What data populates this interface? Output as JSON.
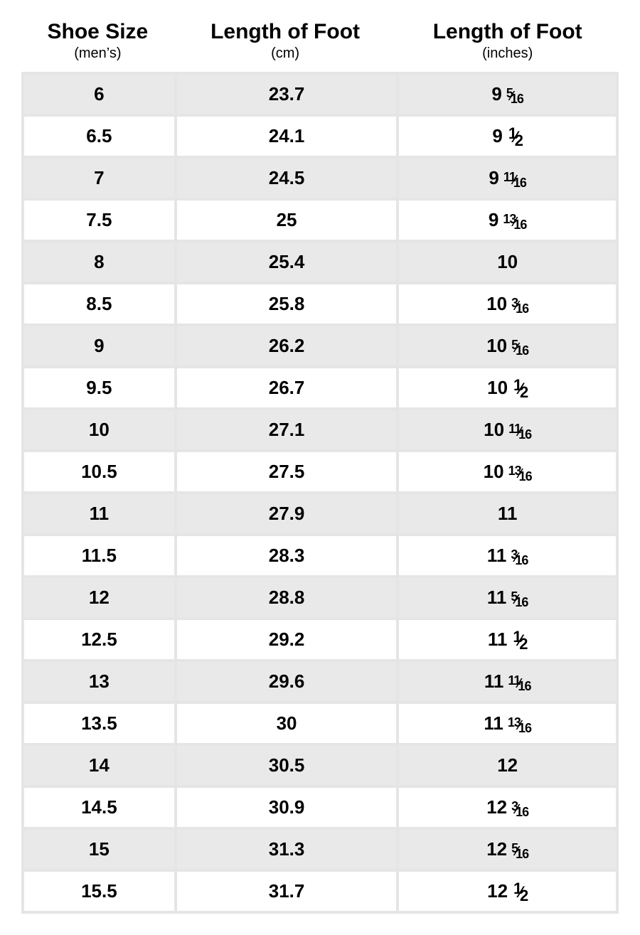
{
  "table": {
    "type": "table",
    "background_color": "#ffffff",
    "row_colors": {
      "odd": "#e9e9e9",
      "even": "#ffffff"
    },
    "border_color": "#e5e5e5",
    "header_fontsize_main": 30,
    "header_fontsize_sub": 20,
    "cell_fontsize": 26,
    "cell_fontweight": 700,
    "fraction_small_fontsize": 18,
    "columns": [
      {
        "title": "Shoe Size",
        "subtitle": "(men’s)"
      },
      {
        "title": "Length of Foot",
        "subtitle": "(cm)"
      },
      {
        "title": "Length of Foot",
        "subtitle": "(inches)"
      }
    ],
    "rows": [
      {
        "size": "6",
        "cm": "23.7",
        "in_whole": "9",
        "in_num": "5",
        "in_den": "16"
      },
      {
        "size": "6.5",
        "cm": "24.1",
        "in_whole": "9",
        "in_num": "1",
        "in_den": "2"
      },
      {
        "size": "7",
        "cm": "24.5",
        "in_whole": "9",
        "in_num": "11",
        "in_den": "16"
      },
      {
        "size": "7.5",
        "cm": "25",
        "in_whole": "9",
        "in_num": "13",
        "in_den": "16"
      },
      {
        "size": "8",
        "cm": "25.4",
        "in_whole": "10",
        "in_num": "",
        "in_den": ""
      },
      {
        "size": "8.5",
        "cm": "25.8",
        "in_whole": "10",
        "in_num": "3",
        "in_den": "16"
      },
      {
        "size": "9",
        "cm": "26.2",
        "in_whole": "10",
        "in_num": "5",
        "in_den": "16"
      },
      {
        "size": "9.5",
        "cm": "26.7",
        "in_whole": "10",
        "in_num": "1",
        "in_den": "2"
      },
      {
        "size": "10",
        "cm": "27.1",
        "in_whole": "10",
        "in_num": "11",
        "in_den": "16"
      },
      {
        "size": "10.5",
        "cm": "27.5",
        "in_whole": "10",
        "in_num": "13",
        "in_den": "16"
      },
      {
        "size": "11",
        "cm": "27.9",
        "in_whole": "11",
        "in_num": "",
        "in_den": ""
      },
      {
        "size": "11.5",
        "cm": "28.3",
        "in_whole": "11",
        "in_num": "3",
        "in_den": "16"
      },
      {
        "size": "12",
        "cm": "28.8",
        "in_whole": "11",
        "in_num": "5",
        "in_den": "16"
      },
      {
        "size": "12.5",
        "cm": "29.2",
        "in_whole": "11",
        "in_num": "1",
        "in_den": "2"
      },
      {
        "size": "13",
        "cm": "29.6",
        "in_whole": "11",
        "in_num": "11",
        "in_den": "16"
      },
      {
        "size": "13.5",
        "cm": "30",
        "in_whole": "11",
        "in_num": "13",
        "in_den": "16"
      },
      {
        "size": "14",
        "cm": "30.5",
        "in_whole": "12",
        "in_num": "",
        "in_den": ""
      },
      {
        "size": "14.5",
        "cm": "30.9",
        "in_whole": "12",
        "in_num": "3",
        "in_den": "16"
      },
      {
        "size": "15",
        "cm": "31.3",
        "in_whole": "12",
        "in_num": "5",
        "in_den": "16"
      },
      {
        "size": "15.5",
        "cm": "31.7",
        "in_whole": "12",
        "in_num": "1",
        "in_den": "2"
      }
    ]
  }
}
